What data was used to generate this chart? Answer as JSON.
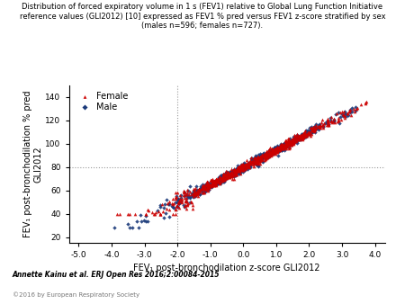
{
  "title": "Distribution of forced expiratory volume in 1 s (FEV1) relative to Global Lung Function Initiative\nreference values (GLI2012) [10] expressed as FEV1 % pred versus FEV1 z-score stratified by sex\n(males n=596; females n=727).",
  "xlabel": "FEV₁ post-bronchodilation z-score GLI2012",
  "ylabel": "FEV₁ post-bronchodilation % pred\nGLI2012",
  "xlim": [
    -5.3,
    4.3
  ],
  "ylim": [
    15,
    150
  ],
  "xticks": [
    -5.0,
    -4.0,
    -3.0,
    -2.0,
    -1.0,
    0.0,
    1.0,
    2.0,
    3.0,
    4.0
  ],
  "yticks": [
    20,
    40,
    60,
    80,
    100,
    120,
    140
  ],
  "hline_y": 80,
  "vline_x": -2.0,
  "female_color": "#cc0000",
  "male_color": "#1a3a7a",
  "footnote1": "Annette Kainu et al. ERJ Open Res 2016;2:00084-2015",
  "footnote2": "©2016 by European Respiratory Society",
  "n_male": 596,
  "n_female": 727,
  "slope": 14.8,
  "intercept": 80.0,
  "noise_tight": 1.8,
  "noise_spread": 4.5
}
